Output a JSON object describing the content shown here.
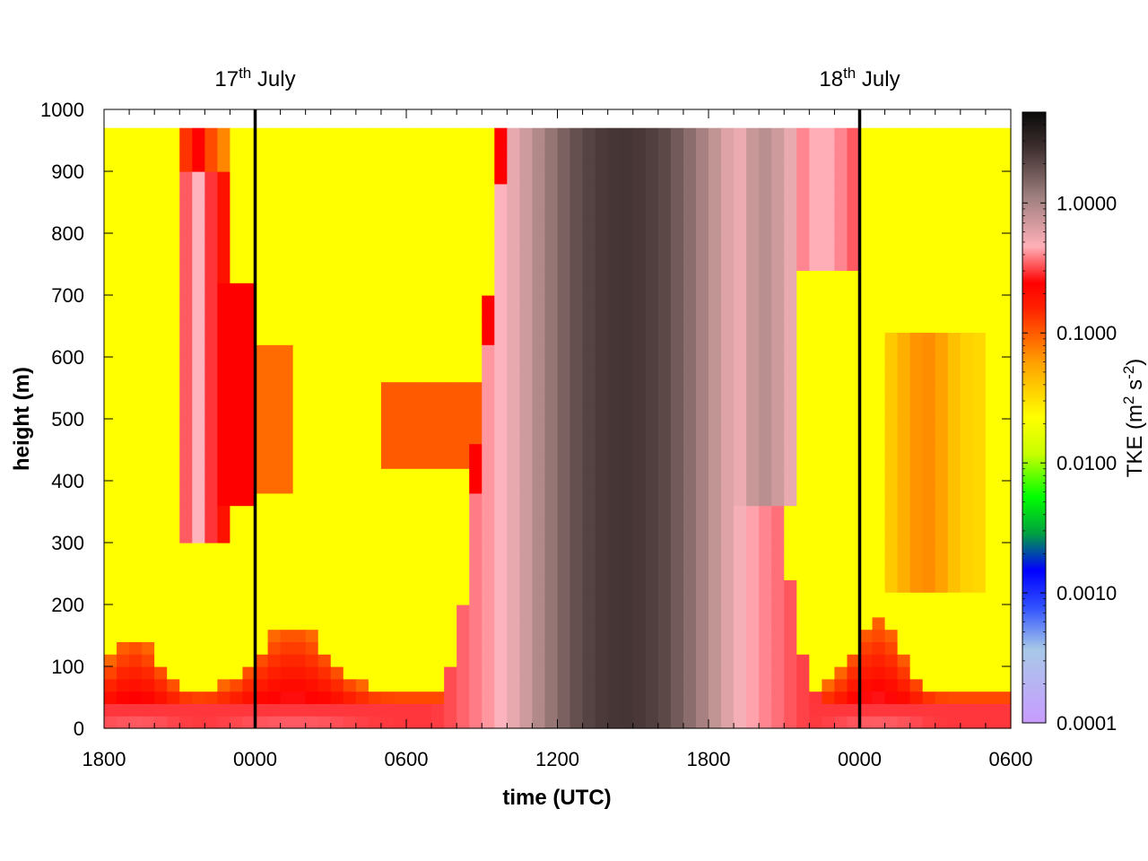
{
  "chart_data": {
    "type": "heatmap",
    "xlabel": "time (UTC)",
    "ylabel": "height (m)",
    "x_tick_labels": [
      "1800",
      "0000",
      "0600",
      "1200",
      "1800",
      "0000",
      "0600"
    ],
    "x_range_hours": [
      0,
      36
    ],
    "y_ticks": [
      0,
      100,
      200,
      300,
      400,
      500,
      600,
      700,
      800,
      900,
      1000
    ],
    "ylim": [
      0,
      1000
    ],
    "data_top_m": 970,
    "colorbar": {
      "label": "TKE (m² s⁻²)",
      "label_parts": {
        "base": "TKE (m",
        "sup1": "2",
        "mid": " s",
        "sup2": "-2",
        "end": ")"
      },
      "scale": "log",
      "range": [
        0.0001,
        5
      ],
      "ticks": [
        0.0001,
        0.001,
        0.01,
        0.1,
        1.0
      ],
      "tick_labels": [
        "0.0001",
        "0.0010",
        "0.0100",
        "0.1000",
        "1.0000"
      ]
    },
    "annotations": [
      {
        "label": "17",
        "sup": "th",
        "rest": " July",
        "x_hours": 6
      },
      {
        "label": "18",
        "sup": "th",
        "rest": " July",
        "x_hours": 30
      }
    ],
    "vertical_lines_hours": [
      6,
      30
    ],
    "grid": false
  }
}
